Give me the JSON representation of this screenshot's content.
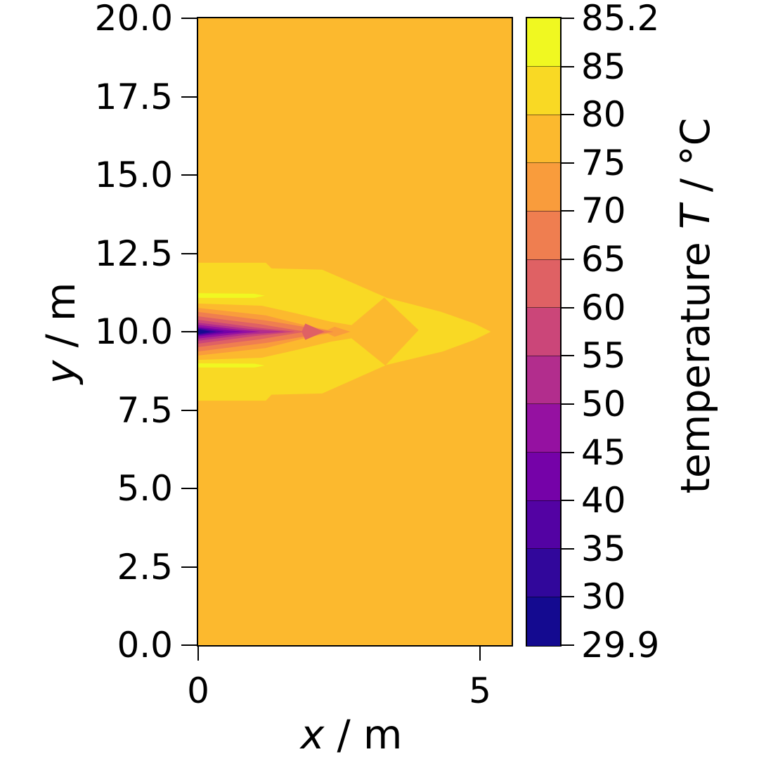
{
  "figure": {
    "background": "#ffffff"
  },
  "chart_data": {
    "type": "heatmap",
    "subtype": "filled-contour",
    "title": "",
    "xlabel": "x / m",
    "xlabel_parts": {
      "var": "x",
      "post": " / m"
    },
    "ylabel": "y / m",
    "ylabel_parts": {
      "var": "y",
      "post": " / m"
    },
    "colorbar_label": "temperature T / °C",
    "colorbar_label_parts": {
      "pre": "temperature ",
      "var": "T",
      "post": " / °C"
    },
    "xlim": [
      0,
      5.56
    ],
    "ylim": [
      0,
      20
    ],
    "x_ticks": [
      0,
      5
    ],
    "x_tick_labels": [
      "0",
      "5"
    ],
    "y_ticks": [
      0.0,
      2.5,
      5.0,
      7.5,
      10.0,
      12.5,
      15.0,
      17.5,
      20.0
    ],
    "y_tick_labels": [
      "0.0",
      "2.5",
      "5.0",
      "7.5",
      "10.0",
      "12.5",
      "15.0",
      "17.5",
      "20.0"
    ],
    "grid": false,
    "legend": "none",
    "vmin": 29.9,
    "vmax": 85.2,
    "levels": [
      29.9,
      30,
      35,
      40,
      45,
      50,
      55,
      60,
      65,
      70,
      75,
      80,
      85,
      85.2
    ],
    "colorbar_tick_labels": [
      "29.9",
      "30",
      "35",
      "40",
      "45",
      "50",
      "55",
      "60",
      "65",
      "70",
      "75",
      "80",
      "85",
      "85.2"
    ],
    "colorbar_spacing": "uniform",
    "colormap": "plasma",
    "band_colors": [
      "#140a90",
      "#31079b",
      "#5302a3",
      "#7502a8",
      "#9511a1",
      "#b22d8d",
      "#cb4679",
      "#df6164",
      "#ef7e50",
      "#f99c3c",
      "#fcb92e",
      "#f9d924",
      "#f0f821"
    ],
    "background_band": 10,
    "regions": [
      {
        "name": "background-75-80C",
        "band": 10,
        "points": [
          [
            0,
            0
          ],
          [
            5.56,
            0
          ],
          [
            5.56,
            20
          ],
          [
            0,
            20
          ]
        ]
      },
      {
        "name": "warm-wedge-80-85C",
        "band": 11,
        "points": [
          [
            0,
            12.2
          ],
          [
            1.2,
            12.2
          ],
          [
            1.3,
            12.02
          ],
          [
            2.2,
            11.98
          ],
          [
            3.35,
            11.08
          ],
          [
            4.3,
            10.64
          ],
          [
            4.9,
            10.26
          ],
          [
            5.19,
            10.0
          ],
          [
            4.9,
            9.74
          ],
          [
            4.34,
            9.37
          ],
          [
            3.34,
            8.94
          ],
          [
            2.2,
            8.03
          ],
          [
            1.3,
            7.99
          ],
          [
            1.2,
            7.8
          ],
          [
            0,
            7.8
          ]
        ]
      },
      {
        "name": "hot-streak-upper-85-85.2C",
        "band": 12,
        "points": [
          [
            0,
            11.23
          ],
          [
            1.0,
            11.21
          ],
          [
            1.18,
            11.15
          ],
          [
            1.0,
            11.08
          ],
          [
            0,
            11.08
          ]
        ]
      },
      {
        "name": "hot-streak-lower-85-85.2C",
        "band": 12,
        "points": [
          [
            0,
            8.99
          ],
          [
            1.0,
            8.98
          ],
          [
            1.18,
            8.92
          ],
          [
            1.0,
            8.86
          ],
          [
            0,
            8.86
          ]
        ]
      },
      {
        "name": "plume-75-80C-arrowhead",
        "band": 10,
        "points": [
          [
            0,
            10.9
          ],
          [
            1.13,
            10.83
          ],
          [
            1.75,
            10.58
          ],
          [
            2.35,
            10.32
          ],
          [
            2.72,
            10.21
          ],
          [
            3.3,
            11.09
          ],
          [
            3.91,
            10.05
          ],
          [
            3.32,
            8.92
          ],
          [
            2.72,
            9.79
          ],
          [
            2.35,
            9.68
          ],
          [
            1.75,
            9.42
          ],
          [
            1.13,
            9.17
          ],
          [
            0,
            9.1
          ]
        ]
      },
      {
        "name": "plume-70-75C",
        "band": 9,
        "points": [
          [
            0,
            10.76
          ],
          [
            1.2,
            10.52
          ],
          [
            2.0,
            10.16
          ],
          [
            2.3,
            10.06
          ],
          [
            2.42,
            10.16
          ],
          [
            2.7,
            10.0
          ],
          [
            2.42,
            9.84
          ],
          [
            2.3,
            9.94
          ],
          [
            2.0,
            9.84
          ],
          [
            1.2,
            9.48
          ],
          [
            0,
            9.24
          ]
        ]
      },
      {
        "name": "plume-65-70C",
        "band": 8,
        "points": [
          [
            0,
            10.63
          ],
          [
            1.2,
            10.36
          ],
          [
            2.4,
            10.0
          ],
          [
            1.2,
            9.64
          ],
          [
            0,
            9.37
          ]
        ]
      },
      {
        "name": "plume-60-65C-chevron",
        "band": 7,
        "points": [
          [
            0,
            10.49
          ],
          [
            1.1,
            10.24
          ],
          [
            1.84,
            10.02
          ],
          [
            1.9,
            10.26
          ],
          [
            2.24,
            10.0
          ],
          [
            1.9,
            9.74
          ],
          [
            1.84,
            9.98
          ],
          [
            1.1,
            9.76
          ],
          [
            0,
            9.51
          ]
        ]
      },
      {
        "name": "plume-55-60C",
        "band": 6,
        "points": [
          [
            0,
            10.38
          ],
          [
            1.0,
            10.14
          ],
          [
            1.72,
            10.0
          ],
          [
            1.0,
            9.86
          ],
          [
            0,
            9.62
          ]
        ]
      },
      {
        "name": "plume-50-55C",
        "band": 5,
        "points": [
          [
            0,
            10.29
          ],
          [
            0.9,
            10.09
          ],
          [
            1.55,
            10.0
          ],
          [
            0.9,
            9.91
          ],
          [
            0,
            9.71
          ]
        ]
      },
      {
        "name": "plume-45-50C",
        "band": 4,
        "points": [
          [
            0,
            10.22
          ],
          [
            0.75,
            10.06
          ],
          [
            1.1,
            10.0
          ],
          [
            0.75,
            9.94
          ],
          [
            0,
            9.78
          ]
        ]
      },
      {
        "name": "plume-40-45C",
        "band": 3,
        "points": [
          [
            0,
            10.15
          ],
          [
            0.55,
            10.04
          ],
          [
            0.82,
            10.0
          ],
          [
            0.55,
            9.96
          ],
          [
            0,
            9.85
          ]
        ]
      },
      {
        "name": "plume-35-40C",
        "band": 2,
        "points": [
          [
            0,
            10.12
          ],
          [
            0.47,
            10.0
          ],
          [
            0,
            9.88
          ]
        ]
      },
      {
        "name": "plume-30-35C",
        "band": 1,
        "points": [
          [
            0,
            10.095
          ],
          [
            0.32,
            10.0
          ],
          [
            0,
            9.905
          ]
        ]
      },
      {
        "name": "plume-cold-core-29.9-30C",
        "band": 0,
        "points": [
          [
            0,
            10.07
          ],
          [
            0.22,
            10.0
          ],
          [
            0,
            9.93
          ]
        ]
      }
    ]
  }
}
